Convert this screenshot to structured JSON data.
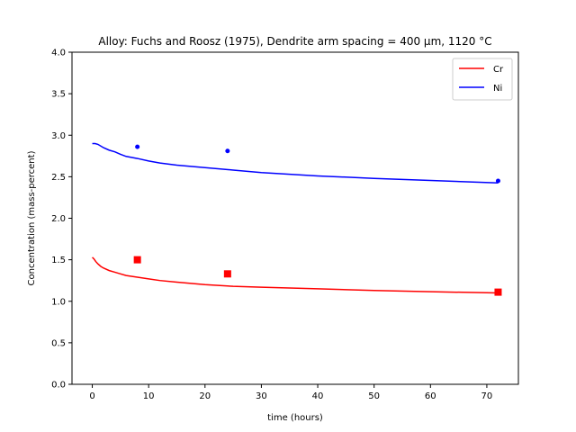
{
  "chart_data": {
    "type": "line",
    "title": "Alloy: Fuchs and Roosz (1975), Dendrite arm spacing = 400 µm, 1120 °C",
    "xlabel": "time (hours)",
    "ylabel": "Concentration (mass-percent)",
    "xlim": [
      -3.6,
      75.6
    ],
    "ylim": [
      0.0,
      4.0
    ],
    "xticks": [
      0,
      10,
      20,
      30,
      40,
      50,
      60,
      70
    ],
    "yticks": [
      0.0,
      0.5,
      1.0,
      1.5,
      2.0,
      2.5,
      3.0,
      3.5,
      4.0
    ],
    "xtick_labels": [
      "0",
      "10",
      "20",
      "30",
      "40",
      "50",
      "60",
      "70"
    ],
    "ytick_labels": [
      "0.0",
      "0.5",
      "1.0",
      "1.5",
      "2.0",
      "2.5",
      "3.0",
      "3.5",
      "4.0"
    ],
    "grid": false,
    "legend_position": "top-right",
    "series": [
      {
        "name": "Cr",
        "color": "#ff0000",
        "x": [
          0,
          0.3,
          0.6,
          1,
          1.5,
          2,
          3,
          4,
          5,
          6,
          8,
          10,
          12,
          15,
          20,
          25,
          30,
          40,
          50,
          60,
          72
        ],
        "y": [
          1.53,
          1.51,
          1.48,
          1.45,
          1.42,
          1.4,
          1.37,
          1.35,
          1.33,
          1.31,
          1.29,
          1.27,
          1.25,
          1.23,
          1.2,
          1.18,
          1.17,
          1.15,
          1.13,
          1.115,
          1.1
        ]
      },
      {
        "name": "Ni",
        "color": "#0000ff",
        "x": [
          0,
          0.5,
          1,
          2,
          3,
          4,
          5,
          6,
          8,
          10,
          12,
          15,
          20,
          25,
          30,
          40,
          50,
          60,
          72
        ],
        "y": [
          2.9,
          2.9,
          2.89,
          2.85,
          2.82,
          2.8,
          2.77,
          2.745,
          2.72,
          2.69,
          2.665,
          2.64,
          2.61,
          2.58,
          2.55,
          2.51,
          2.48,
          2.455,
          2.425
        ]
      }
    ],
    "experimental_points": [
      {
        "series": "Cr",
        "marker": "square",
        "color": "#ff0000",
        "x": [
          8,
          24,
          72
        ],
        "y": [
          1.5,
          1.33,
          1.11
        ]
      },
      {
        "series": "Ni",
        "marker": "circle",
        "color": "#0000ff",
        "x": [
          8,
          24,
          72
        ],
        "y": [
          2.86,
          2.81,
          2.45
        ]
      }
    ]
  }
}
